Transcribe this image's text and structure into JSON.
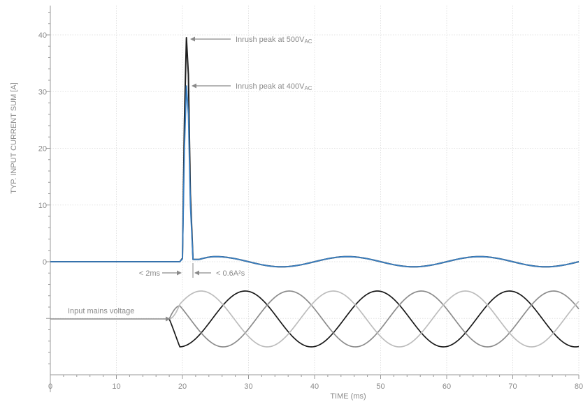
{
  "chart_data": {
    "type": "line",
    "xlabel": "TIME (ms)",
    "ylabel": "TYP. INPUT CURRENT SUM [A]",
    "xlim": [
      0,
      80
    ],
    "ylim": [
      0,
      40
    ],
    "x_ticks": [
      "0",
      "10",
      "20",
      "30",
      "40",
      "50",
      "60",
      "70",
      "80"
    ],
    "y_ticks": [
      "0",
      "10",
      "20",
      "30",
      "40"
    ],
    "grid": true,
    "series": [
      {
        "color": "#1f1f1f",
        "x": [
          0,
          19.6,
          20,
          20.3,
          20.6,
          20.9,
          21.2,
          21.6,
          22.5,
          25,
          30,
          35,
          40,
          45,
          50,
          55,
          60,
          65,
          70,
          75,
          80
        ],
        "y": [
          0,
          0,
          0.6,
          25,
          39.5,
          33,
          12,
          0.4,
          0.4,
          0.9,
          0,
          -0.9,
          0,
          0.9,
          0,
          -0.9,
          0,
          0.9,
          0,
          -0.9,
          0
        ]
      },
      {
        "color": "#3a7fc1",
        "x": [
          0,
          19.6,
          20,
          20.3,
          20.6,
          20.9,
          21.2,
          21.6,
          22.5,
          25,
          30,
          35,
          40,
          45,
          50,
          55,
          60,
          65,
          70,
          75,
          80
        ],
        "y": [
          0,
          0,
          0.5,
          20,
          31,
          26,
          10,
          0.4,
          0.4,
          0.9,
          0,
          -0.9,
          0,
          0.9,
          0,
          -0.9,
          0,
          0.9,
          0,
          -0.9,
          0
        ]
      }
    ],
    "mains_voltage": {
      "start_ms": 18,
      "period_ms": 20,
      "end_ms": 80,
      "phase_colors": [
        "#1a1a1a",
        "#8c8c8c",
        "#bdbdbd"
      ]
    },
    "annotations": {
      "peak_500_main": "Inrush peak at 500V",
      "peak_500_sub": "AC",
      "peak_400_main": "Inrush peak at 400V",
      "peak_400_sub": "AC",
      "duration": "< 2ms",
      "i2t": "< 0.6A²s",
      "mains": "Input mains voltage"
    }
  }
}
